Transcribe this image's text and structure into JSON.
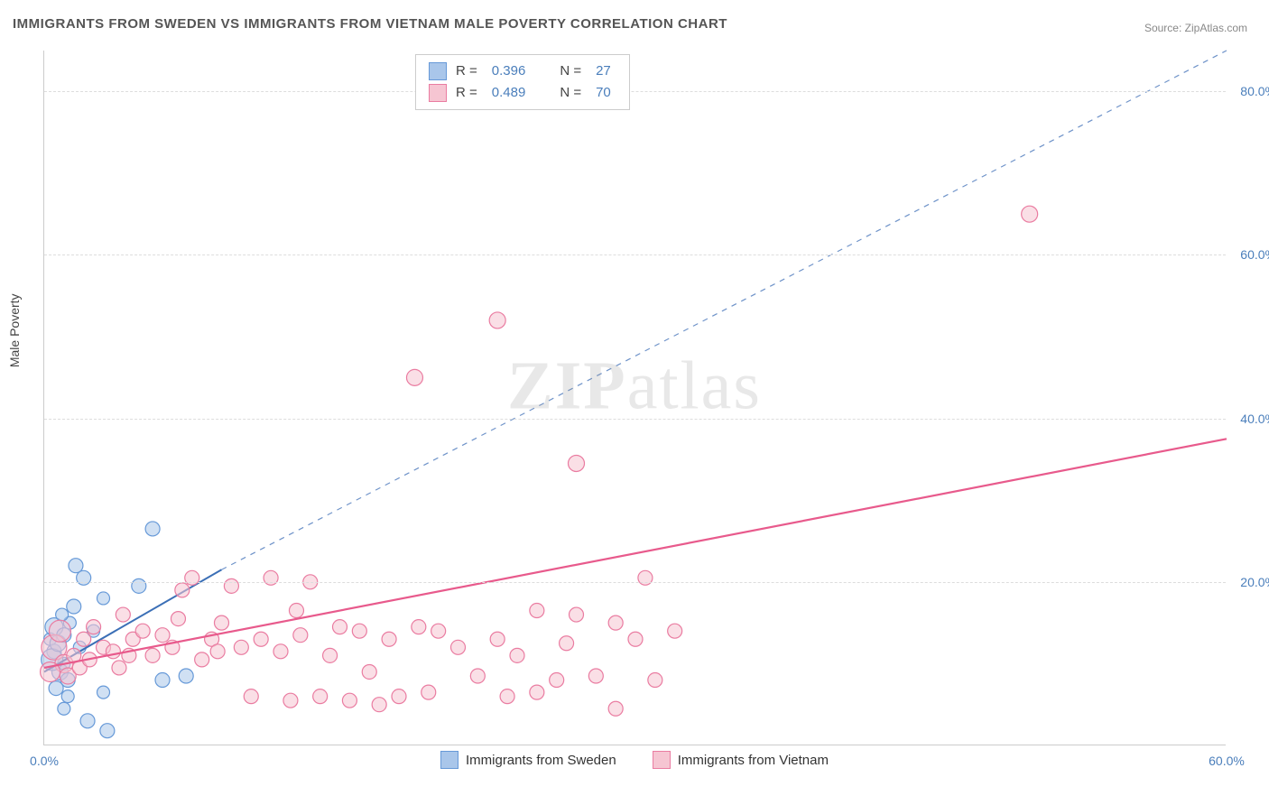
{
  "title": "IMMIGRANTS FROM SWEDEN VS IMMIGRANTS FROM VIETNAM MALE POVERTY CORRELATION CHART",
  "source": "Source: ZipAtlas.com",
  "watermark": "ZIPatlas",
  "y_axis_label": "Male Poverty",
  "chart": {
    "type": "scatter",
    "xlim": [
      0,
      60
    ],
    "ylim": [
      0,
      85
    ],
    "x_ticks": [
      {
        "v": 0,
        "label": "0.0%"
      },
      {
        "v": 60,
        "label": "60.0%"
      }
    ],
    "y_ticks": [
      {
        "v": 20,
        "label": "20.0%"
      },
      {
        "v": 40,
        "label": "40.0%"
      },
      {
        "v": 60,
        "label": "60.0%"
      },
      {
        "v": 80,
        "label": "80.0%"
      }
    ],
    "grid_color": "#dddddd",
    "background_color": "#ffffff",
    "series": [
      {
        "name": "Immigrants from Sweden",
        "color_fill": "#a9c6ea",
        "color_stroke": "#6699d8",
        "r_value": "0.396",
        "n_value": "27",
        "trend": {
          "x1": 0,
          "y1": 9,
          "x2": 9,
          "y2": 21.5,
          "dash": false,
          "color": "#3b6fb6",
          "width": 2
        },
        "trend_ext": {
          "x1": 9,
          "y1": 21.5,
          "x2": 60,
          "y2": 85,
          "dash": true,
          "color": "#6f93c9",
          "width": 1.2
        },
        "points": [
          {
            "x": 0.3,
            "y": 13.0,
            "r": 7
          },
          {
            "x": 0.5,
            "y": 14.5,
            "r": 10
          },
          {
            "x": 0.5,
            "y": 11.5,
            "r": 8
          },
          {
            "x": 0.8,
            "y": 9.0,
            "r": 9
          },
          {
            "x": 0.6,
            "y": 7.0,
            "r": 8
          },
          {
            "x": 1.0,
            "y": 10.0,
            "r": 7
          },
          {
            "x": 1.2,
            "y": 8.0,
            "r": 8
          },
          {
            "x": 1.2,
            "y": 6.0,
            "r": 7
          },
          {
            "x": 1.5,
            "y": 17.0,
            "r": 8
          },
          {
            "x": 1.6,
            "y": 22.0,
            "r": 8
          },
          {
            "x": 2.0,
            "y": 20.5,
            "r": 8
          },
          {
            "x": 1.8,
            "y": 12.0,
            "r": 7
          },
          {
            "x": 2.5,
            "y": 14.0,
            "r": 7
          },
          {
            "x": 2.2,
            "y": 3.0,
            "r": 8
          },
          {
            "x": 1.0,
            "y": 4.5,
            "r": 7
          },
          {
            "x": 3.0,
            "y": 6.5,
            "r": 7
          },
          {
            "x": 3.2,
            "y": 1.8,
            "r": 8
          },
          {
            "x": 3.0,
            "y": 18.0,
            "r": 7
          },
          {
            "x": 4.8,
            "y": 19.5,
            "r": 8
          },
          {
            "x": 5.5,
            "y": 26.5,
            "r": 8
          },
          {
            "x": 6.0,
            "y": 8.0,
            "r": 8
          },
          {
            "x": 7.2,
            "y": 8.5,
            "r": 8
          },
          {
            "x": 0.4,
            "y": 10.5,
            "r": 12
          },
          {
            "x": 0.7,
            "y": 12.5,
            "r": 9
          },
          {
            "x": 1.3,
            "y": 15.0,
            "r": 7
          },
          {
            "x": 0.9,
            "y": 16.0,
            "r": 7
          },
          {
            "x": 1.0,
            "y": 13.5,
            "r": 8
          }
        ]
      },
      {
        "name": "Immigrants from Vietnam",
        "color_fill": "#f6c5d2",
        "color_stroke": "#ea7ca1",
        "r_value": "0.489",
        "n_value": "70",
        "trend": {
          "x1": 0,
          "y1": 9.5,
          "x2": 60,
          "y2": 37.5,
          "dash": false,
          "color": "#e85a8c",
          "width": 2.2
        },
        "points": [
          {
            "x": 0.5,
            "y": 12.0,
            "r": 14
          },
          {
            "x": 0.8,
            "y": 14.0,
            "r": 12
          },
          {
            "x": 1.0,
            "y": 10.0,
            "r": 10
          },
          {
            "x": 1.5,
            "y": 11.0,
            "r": 8
          },
          {
            "x": 2.0,
            "y": 13.0,
            "r": 8
          },
          {
            "x": 2.5,
            "y": 14.5,
            "r": 8
          },
          {
            "x": 3.0,
            "y": 12.0,
            "r": 8
          },
          {
            "x": 3.5,
            "y": 11.5,
            "r": 8
          },
          {
            "x": 4.0,
            "y": 16.0,
            "r": 8
          },
          {
            "x": 4.5,
            "y": 13.0,
            "r": 8
          },
          {
            "x": 5.0,
            "y": 14.0,
            "r": 8
          },
          {
            "x": 5.5,
            "y": 11.0,
            "r": 8
          },
          {
            "x": 6.0,
            "y": 13.5,
            "r": 8
          },
          {
            "x": 6.5,
            "y": 12.0,
            "r": 8
          },
          {
            "x": 7.0,
            "y": 19.0,
            "r": 8
          },
          {
            "x": 7.5,
            "y": 20.5,
            "r": 8
          },
          {
            "x": 8.0,
            "y": 10.5,
            "r": 8
          },
          {
            "x": 8.5,
            "y": 13.0,
            "r": 8
          },
          {
            "x": 9.0,
            "y": 15.0,
            "r": 8
          },
          {
            "x": 9.5,
            "y": 19.5,
            "r": 8
          },
          {
            "x": 10.0,
            "y": 12.0,
            "r": 8
          },
          {
            "x": 10.5,
            "y": 6.0,
            "r": 8
          },
          {
            "x": 11.0,
            "y": 13.0,
            "r": 8
          },
          {
            "x": 11.5,
            "y": 20.5,
            "r": 8
          },
          {
            "x": 12.0,
            "y": 11.5,
            "r": 8
          },
          {
            "x": 12.5,
            "y": 5.5,
            "r": 8
          },
          {
            "x": 13.0,
            "y": 13.5,
            "r": 8
          },
          {
            "x": 13.5,
            "y": 20.0,
            "r": 8
          },
          {
            "x": 14.0,
            "y": 6.0,
            "r": 8
          },
          {
            "x": 15.0,
            "y": 14.5,
            "r": 8
          },
          {
            "x": 15.5,
            "y": 5.5,
            "r": 8
          },
          {
            "x": 16.0,
            "y": 14.0,
            "r": 8
          },
          {
            "x": 17.0,
            "y": 5.0,
            "r": 8
          },
          {
            "x": 17.5,
            "y": 13.0,
            "r": 8
          },
          {
            "x": 18.0,
            "y": 6.0,
            "r": 8
          },
          {
            "x": 18.8,
            "y": 45.0,
            "r": 9
          },
          {
            "x": 19.0,
            "y": 14.5,
            "r": 8
          },
          {
            "x": 19.5,
            "y": 6.5,
            "r": 8
          },
          {
            "x": 20.0,
            "y": 14.0,
            "r": 8
          },
          {
            "x": 21.0,
            "y": 12.0,
            "r": 8
          },
          {
            "x": 22.0,
            "y": 8.5,
            "r": 8
          },
          {
            "x": 23.0,
            "y": 13.0,
            "r": 8
          },
          {
            "x": 23.0,
            "y": 52.0,
            "r": 9
          },
          {
            "x": 24.0,
            "y": 11.0,
            "r": 8
          },
          {
            "x": 25.0,
            "y": 16.5,
            "r": 8
          },
          {
            "x": 25.0,
            "y": 6.5,
            "r": 8
          },
          {
            "x": 26.0,
            "y": 8.0,
            "r": 8
          },
          {
            "x": 27.0,
            "y": 16.0,
            "r": 8
          },
          {
            "x": 27.0,
            "y": 34.5,
            "r": 9
          },
          {
            "x": 28.0,
            "y": 8.5,
            "r": 8
          },
          {
            "x": 29.0,
            "y": 15.0,
            "r": 8
          },
          {
            "x": 29.0,
            "y": 4.5,
            "r": 8
          },
          {
            "x": 30.0,
            "y": 13.0,
            "r": 8
          },
          {
            "x": 30.5,
            "y": 20.5,
            "r": 8
          },
          {
            "x": 31.0,
            "y": 8.0,
            "r": 8
          },
          {
            "x": 32.0,
            "y": 14.0,
            "r": 8
          },
          {
            "x": 1.2,
            "y": 8.5,
            "r": 9
          },
          {
            "x": 1.8,
            "y": 9.5,
            "r": 8
          },
          {
            "x": 2.3,
            "y": 10.5,
            "r": 8
          },
          {
            "x": 0.3,
            "y": 9.0,
            "r": 11
          },
          {
            "x": 50.0,
            "y": 65.0,
            "r": 9
          },
          {
            "x": 3.8,
            "y": 9.5,
            "r": 8
          },
          {
            "x": 4.3,
            "y": 11.0,
            "r": 8
          },
          {
            "x": 6.8,
            "y": 15.5,
            "r": 8
          },
          {
            "x": 8.8,
            "y": 11.5,
            "r": 8
          },
          {
            "x": 12.8,
            "y": 16.5,
            "r": 8
          },
          {
            "x": 14.5,
            "y": 11.0,
            "r": 8
          },
          {
            "x": 16.5,
            "y": 9.0,
            "r": 8
          },
          {
            "x": 23.5,
            "y": 6.0,
            "r": 8
          },
          {
            "x": 26.5,
            "y": 12.5,
            "r": 8
          }
        ]
      }
    ]
  },
  "legend_top": {
    "rows": [
      {
        "swatch_fill": "#a9c6ea",
        "swatch_stroke": "#6699d8",
        "r_label": "R =",
        "r_val": "0.396",
        "n_label": "N =",
        "n_val": "27"
      },
      {
        "swatch_fill": "#f6c5d2",
        "swatch_stroke": "#ea7ca1",
        "r_label": "R =",
        "r_val": "0.489",
        "n_label": "N =",
        "n_val": "70"
      }
    ]
  },
  "legend_bottom": {
    "items": [
      {
        "swatch_fill": "#a9c6ea",
        "swatch_stroke": "#6699d8",
        "label": "Immigrants from Sweden"
      },
      {
        "swatch_fill": "#f6c5d2",
        "swatch_stroke": "#ea7ca1",
        "label": "Immigrants from Vietnam"
      }
    ]
  }
}
